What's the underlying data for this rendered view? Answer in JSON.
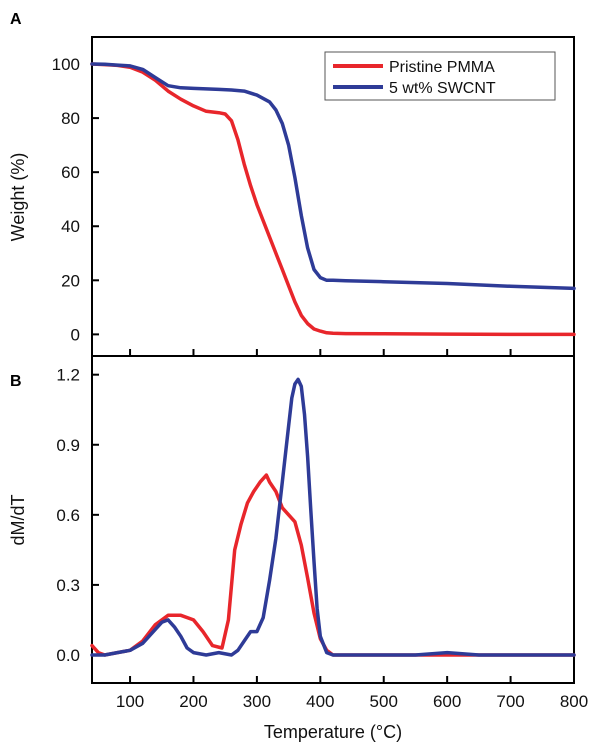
{
  "chart_data": [
    {
      "panel": "A",
      "type": "line",
      "ylabel": "Weight (%)",
      "xlim": [
        40,
        800
      ],
      "ylim": [
        -8,
        110
      ],
      "yticks": [
        0,
        20,
        40,
        60,
        80,
        100
      ],
      "xticks": [
        100,
        200,
        300,
        400,
        500,
        600,
        700,
        800
      ],
      "legend": {
        "placement": "top-right"
      },
      "series": [
        {
          "name": "Pristine PMMA",
          "color": "#e8262b",
          "x": [
            40,
            60,
            80,
            100,
            120,
            140,
            160,
            180,
            200,
            220,
            240,
            250,
            260,
            270,
            280,
            290,
            300,
            310,
            320,
            330,
            340,
            350,
            360,
            370,
            380,
            390,
            400,
            410,
            420,
            440,
            500,
            600,
            700,
            800
          ],
          "y": [
            100,
            99.8,
            99.5,
            98.8,
            97,
            94,
            90,
            87,
            84.5,
            82.5,
            82,
            81.5,
            79,
            72,
            63,
            55,
            48,
            42,
            36,
            30,
            24,
            18,
            12,
            7,
            4,
            2,
            1.2,
            0.6,
            0.4,
            0.3,
            0.2,
            0.1,
            0,
            0
          ]
        },
        {
          "name": "5 wt% SWCNT",
          "color": "#2e3b97",
          "x": [
            40,
            60,
            80,
            100,
            120,
            140,
            160,
            180,
            200,
            220,
            240,
            260,
            280,
            300,
            320,
            330,
            340,
            350,
            360,
            370,
            380,
            390,
            400,
            410,
            420,
            440,
            500,
            600,
            700,
            800
          ],
          "y": [
            100,
            99.9,
            99.6,
            99.3,
            98,
            95,
            92,
            91.2,
            91,
            90.8,
            90.6,
            90.4,
            90,
            88.5,
            86,
            83,
            78,
            70,
            58,
            44,
            32,
            24,
            21,
            20,
            20,
            19.8,
            19.5,
            18.8,
            17.8,
            17
          ]
        }
      ]
    },
    {
      "panel": "B",
      "type": "line",
      "ylabel": "dM/dT",
      "xlabel": "Temperature (°C)",
      "xlim": [
        40,
        800
      ],
      "ylim": [
        -0.12,
        1.28
      ],
      "yticks": [
        0.0,
        0.3,
        0.6,
        0.9,
        1.2
      ],
      "ytick_labels": [
        "0.0",
        "0.3",
        "0.6",
        "0.9",
        "1.2"
      ],
      "xticks": [
        100,
        200,
        300,
        400,
        500,
        600,
        700,
        800
      ],
      "xtick_labels": [
        "100",
        "200",
        "300",
        "400",
        "500",
        "600",
        "700",
        "800"
      ],
      "series": [
        {
          "name": "Pristine PMMA",
          "color": "#e8262b",
          "x": [
            40,
            50,
            60,
            80,
            100,
            120,
            140,
            160,
            180,
            200,
            215,
            230,
            245,
            255,
            265,
            275,
            285,
            295,
            305,
            315,
            320,
            330,
            340,
            350,
            360,
            370,
            380,
            390,
            400,
            410,
            420,
            450,
            500,
            550,
            600,
            650,
            700,
            750,
            800
          ],
          "y": [
            0.04,
            0.01,
            0.0,
            0.01,
            0.02,
            0.06,
            0.13,
            0.17,
            0.17,
            0.15,
            0.1,
            0.04,
            0.03,
            0.15,
            0.45,
            0.56,
            0.65,
            0.7,
            0.74,
            0.77,
            0.74,
            0.7,
            0.63,
            0.6,
            0.57,
            0.47,
            0.33,
            0.18,
            0.07,
            0.02,
            0.0,
            0.0,
            0.0,
            0.0,
            0.0,
            0.0,
            0.0,
            0.0,
            0.0
          ]
        },
        {
          "name": "5 wt% SWCNT",
          "color": "#2e3b97",
          "x": [
            40,
            60,
            80,
            100,
            120,
            140,
            150,
            160,
            170,
            180,
            190,
            200,
            220,
            240,
            260,
            270,
            280,
            290,
            300,
            310,
            320,
            330,
            340,
            350,
            355,
            360,
            365,
            370,
            375,
            380,
            385,
            390,
            395,
            400,
            410,
            420,
            450,
            500,
            550,
            600,
            650,
            700,
            750,
            800
          ],
          "y": [
            0.0,
            0.0,
            0.01,
            0.02,
            0.05,
            0.11,
            0.14,
            0.15,
            0.12,
            0.08,
            0.03,
            0.01,
            0.0,
            0.01,
            0.0,
            0.02,
            0.06,
            0.1,
            0.1,
            0.16,
            0.32,
            0.5,
            0.74,
            0.98,
            1.1,
            1.16,
            1.18,
            1.15,
            1.03,
            0.85,
            0.62,
            0.4,
            0.2,
            0.08,
            0.01,
            0.0,
            0.0,
            0.0,
            0.0,
            0.01,
            0.0,
            0.0,
            0.0,
            0.0
          ]
        }
      ]
    }
  ]
}
